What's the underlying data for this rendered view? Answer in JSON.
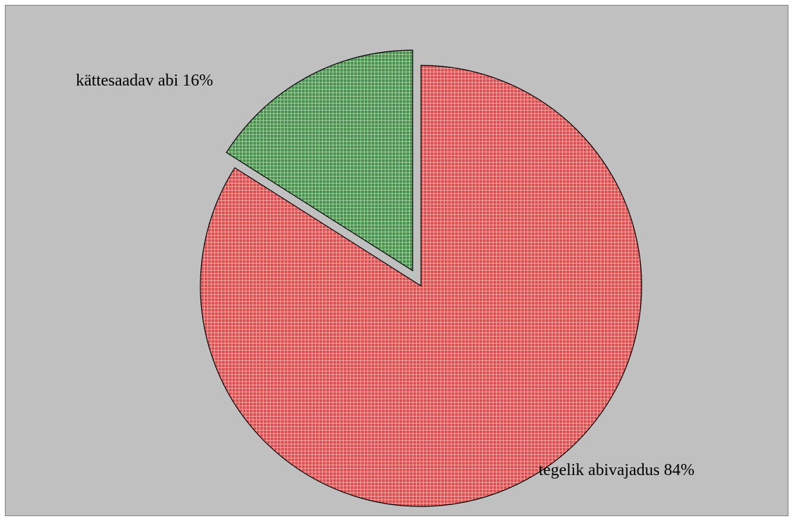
{
  "chart_data": {
    "type": "pie",
    "title": "",
    "slices": [
      {
        "label": "kättesaadav abi 16%",
        "value": 16,
        "color": "#4e9a52",
        "exploded": true
      },
      {
        "label": "tegelik abivajadus 84%",
        "value": 84,
        "color": "#e65555",
        "exploded": false
      }
    ],
    "start_angle": "12 o'clock",
    "direction": "counter-clockwise for first slice",
    "legend": "none",
    "background": "#c0c0c0",
    "fill_pattern": "fine grid hatch"
  }
}
